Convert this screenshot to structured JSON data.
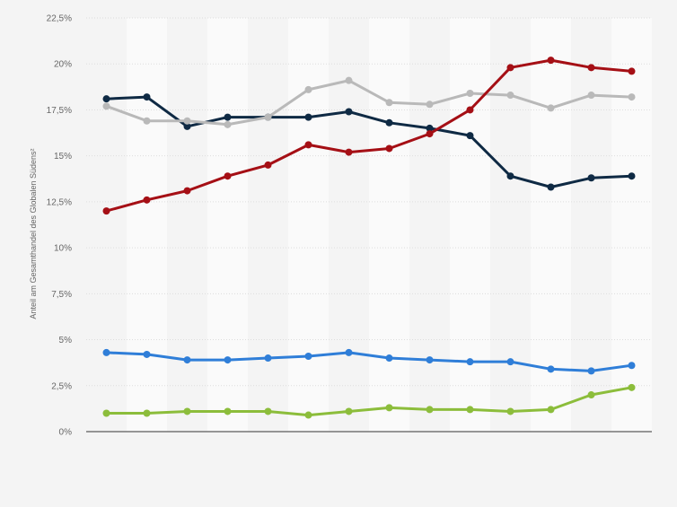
{
  "chart_data": {
    "type": "line",
    "ylabel": "Anteil am Gesamthandel des Globalen Südens²",
    "y_ticks": [
      "0%",
      "2,5%",
      "5%",
      "7,5%",
      "10%",
      "12,5%",
      "15%",
      "17,5%",
      "20%",
      "22,5%"
    ],
    "ylim": [
      0,
      22.5
    ],
    "grid": true,
    "x_count": 14,
    "x_labels_visible": false,
    "series": [
      {
        "color": "#0f2a44",
        "values": [
          18.1,
          18.2,
          16.6,
          17.1,
          17.1,
          17.1,
          17.4,
          16.8,
          16.5,
          16.1,
          13.9,
          13.3,
          13.8,
          13.9
        ]
      },
      {
        "color": "#b9b9b9",
        "values": [
          17.7,
          16.9,
          16.9,
          16.7,
          17.1,
          18.6,
          19.1,
          17.9,
          17.8,
          18.4,
          18.3,
          17.6,
          18.3,
          18.2
        ]
      },
      {
        "color": "#a50f15",
        "values": [
          12.0,
          12.6,
          13.1,
          13.9,
          14.5,
          15.6,
          15.2,
          15.4,
          16.2,
          17.5,
          19.8,
          20.2,
          19.8,
          19.6
        ]
      },
      {
        "color": "#2f7ed8",
        "values": [
          4.3,
          4.2,
          3.9,
          3.9,
          4.0,
          4.1,
          4.3,
          4.0,
          3.9,
          3.8,
          3.8,
          3.4,
          3.3,
          3.6
        ]
      },
      {
        "color": "#8cbd3b",
        "values": [
          1.0,
          1.0,
          1.1,
          1.1,
          1.1,
          0.9,
          1.1,
          1.3,
          1.2,
          1.2,
          1.1,
          1.2,
          2.0,
          2.4
        ]
      }
    ]
  }
}
